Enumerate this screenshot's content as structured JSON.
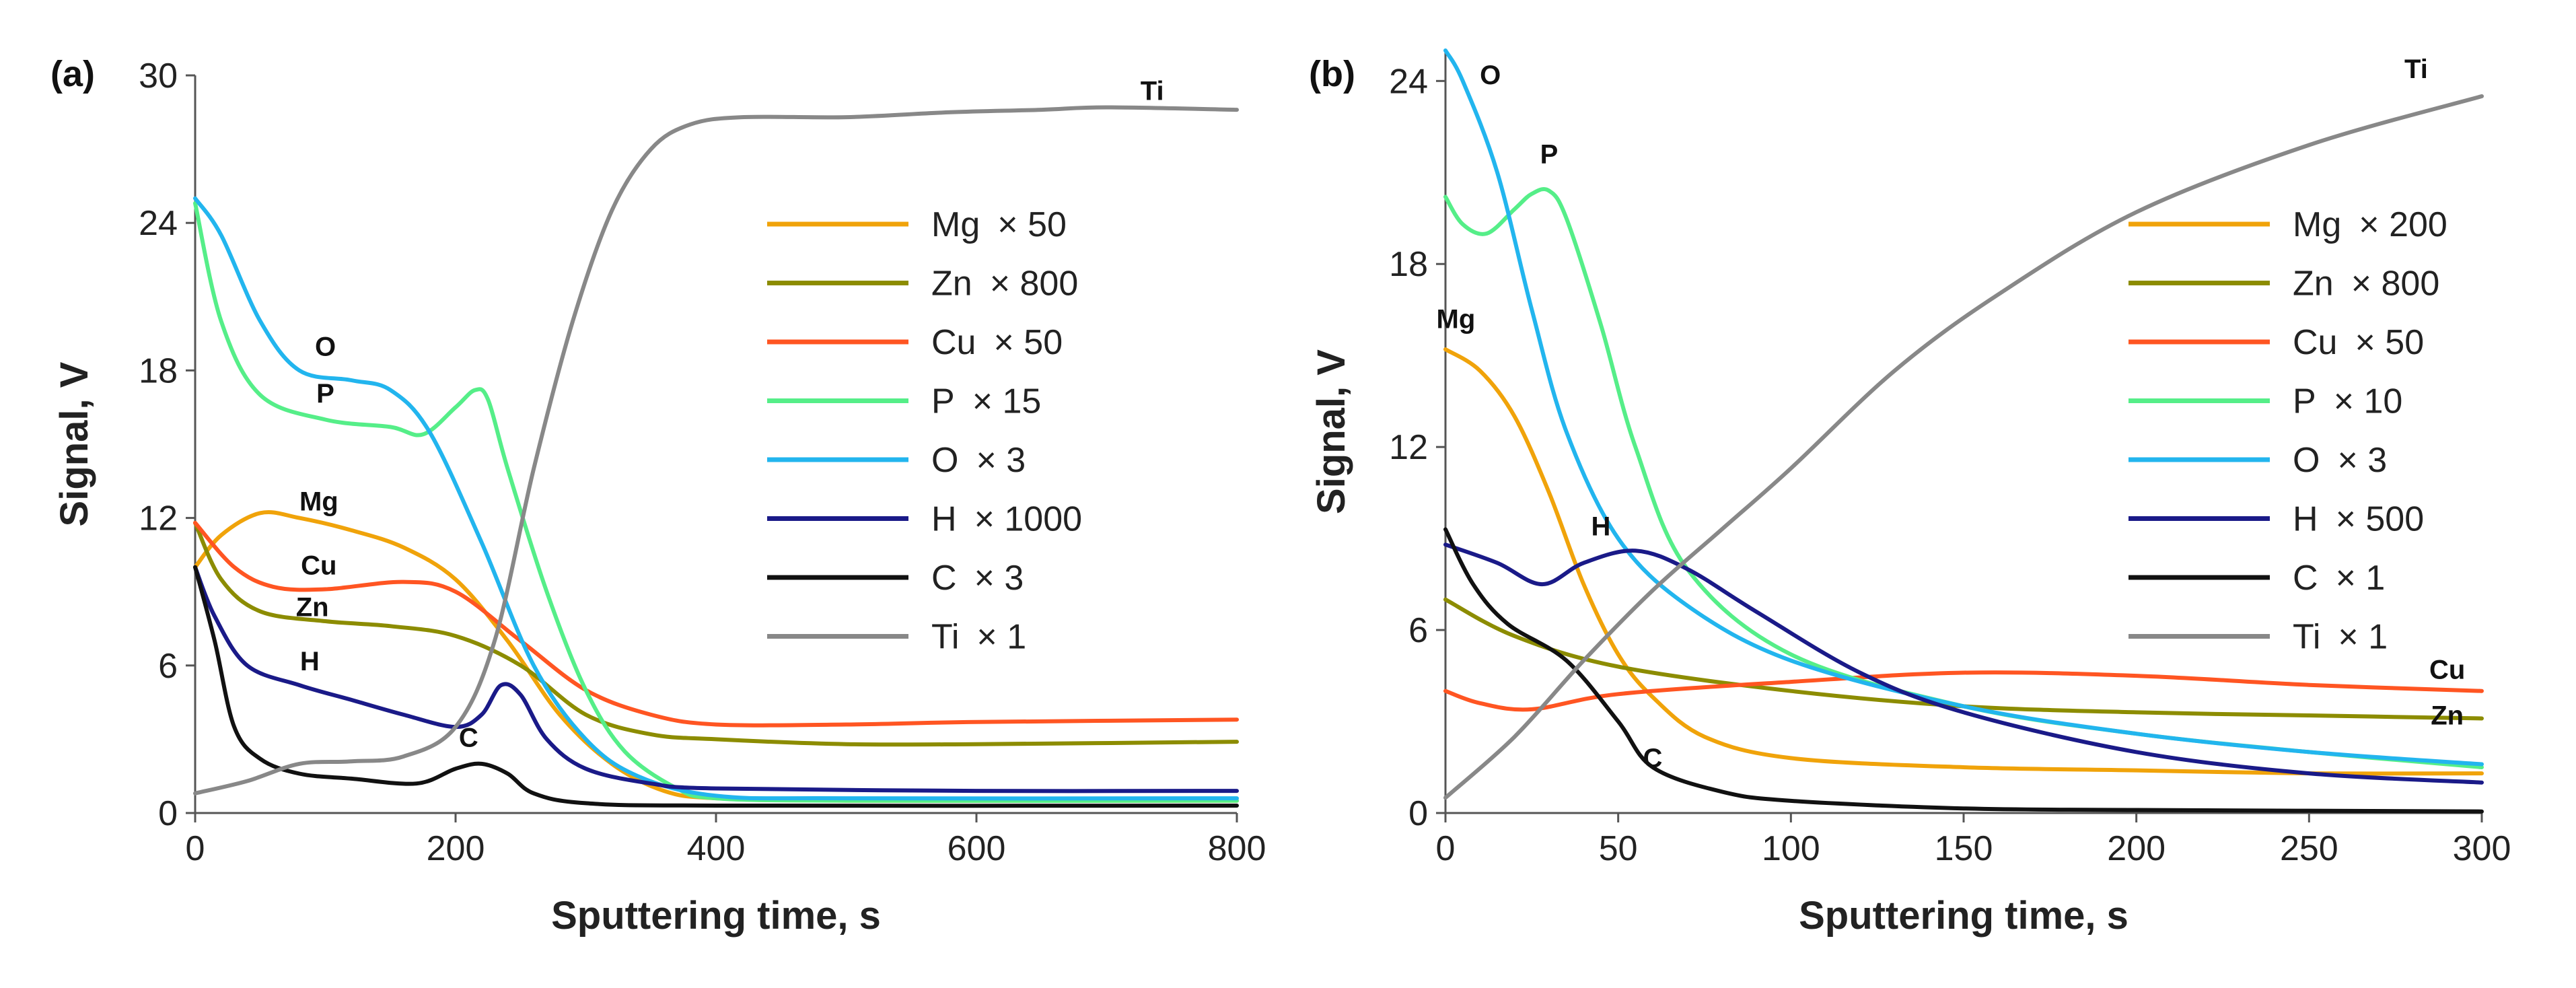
{
  "chart_data": [
    {
      "type": "line",
      "panel_label": "(a)",
      "xlabel": "Sputtering time, s",
      "ylabel": "Signal, V",
      "xlim": [
        0,
        800
      ],
      "ylim": [
        0,
        30
      ],
      "xticks": [
        0,
        200,
        400,
        600,
        800
      ],
      "yticks": [
        0,
        6,
        12,
        18,
        24,
        30
      ],
      "legend_position": "right",
      "series": [
        {
          "name": "Mg",
          "multiplier": "× 50",
          "color": "#f0a30a",
          "label": "Mg",
          "label_at": [
            95,
            12.3
          ],
          "points": [
            [
              0,
              10
            ],
            [
              20,
              11.3
            ],
            [
              50,
              12.2
            ],
            [
              80,
              12
            ],
            [
              120,
              11.5
            ],
            [
              160,
              10.8
            ],
            [
              200,
              9.5
            ],
            [
              240,
              7
            ],
            [
              280,
              4
            ],
            [
              320,
              2
            ],
            [
              360,
              0.9
            ],
            [
              400,
              0.6
            ],
            [
              500,
              0.5
            ],
            [
              800,
              0.5
            ]
          ]
        },
        {
          "name": "Zn",
          "multiplier": "× 800",
          "color": "#8c8c00",
          "label": "Zn",
          "label_at": [
            90,
            8.0
          ],
          "points": [
            [
              0,
              11.8
            ],
            [
              20,
              9.5
            ],
            [
              50,
              8.2
            ],
            [
              100,
              7.8
            ],
            [
              150,
              7.6
            ],
            [
              200,
              7.2
            ],
            [
              250,
              6
            ],
            [
              300,
              4
            ],
            [
              350,
              3.2
            ],
            [
              400,
              3
            ],
            [
              500,
              2.8
            ],
            [
              600,
              2.8
            ],
            [
              800,
              2.9
            ]
          ]
        },
        {
          "name": "Cu",
          "multiplier": "× 50",
          "color": "#ff5522",
          "label": "Cu",
          "label_at": [
            95,
            9.7
          ],
          "points": [
            [
              0,
              11.8
            ],
            [
              30,
              10
            ],
            [
              60,
              9.2
            ],
            [
              100,
              9.1
            ],
            [
              160,
              9.4
            ],
            [
              200,
              9
            ],
            [
              250,
              7
            ],
            [
              300,
              5
            ],
            [
              350,
              4
            ],
            [
              400,
              3.6
            ],
            [
              500,
              3.6
            ],
            [
              600,
              3.7
            ],
            [
              800,
              3.8
            ]
          ]
        },
        {
          "name": "P",
          "multiplier": "× 15",
          "color": "#55ee88",
          "label": "P",
          "label_at": [
            100,
            16.7
          ],
          "points": [
            [
              0,
              24.8
            ],
            [
              20,
              20
            ],
            [
              50,
              17
            ],
            [
              100,
              16
            ],
            [
              150,
              15.7
            ],
            [
              175,
              15.4
            ],
            [
              200,
              16.5
            ],
            [
              215,
              17.2
            ],
            [
              225,
              16.8
            ],
            [
              240,
              14
            ],
            [
              270,
              9
            ],
            [
              300,
              5
            ],
            [
              330,
              2.5
            ],
            [
              370,
              1
            ],
            [
              400,
              0.6
            ],
            [
              500,
              0.5
            ],
            [
              800,
              0.5
            ]
          ]
        },
        {
          "name": "O",
          "multiplier": "× 3",
          "color": "#22b5ee",
          "label": "O",
          "label_at": [
            100,
            18.6
          ],
          "points": [
            [
              0,
              25
            ],
            [
              20,
              23.5
            ],
            [
              50,
              20
            ],
            [
              80,
              18
            ],
            [
              120,
              17.6
            ],
            [
              150,
              17.2
            ],
            [
              180,
              15.5
            ],
            [
              220,
              11
            ],
            [
              260,
              6
            ],
            [
              300,
              3
            ],
            [
              340,
              1.5
            ],
            [
              400,
              0.7
            ],
            [
              500,
              0.6
            ],
            [
              800,
              0.6
            ]
          ]
        },
        {
          "name": "H",
          "multiplier": "× 1000",
          "color": "#1a1a88",
          "label": "H",
          "label_at": [
            88,
            5.8
          ],
          "points": [
            [
              0,
              10
            ],
            [
              15,
              8
            ],
            [
              40,
              6
            ],
            [
              80,
              5.2
            ],
            [
              120,
              4.6
            ],
            [
              160,
              4
            ],
            [
              200,
              3.5
            ],
            [
              220,
              4
            ],
            [
              235,
              5.2
            ],
            [
              250,
              4.8
            ],
            [
              270,
              3
            ],
            [
              300,
              1.8
            ],
            [
              350,
              1.2
            ],
            [
              400,
              1
            ],
            [
              600,
              0.9
            ],
            [
              800,
              0.9
            ]
          ]
        },
        {
          "name": "C",
          "multiplier": "× 3",
          "color": "#111111",
          "label": "C",
          "label_at": [
            210,
            2.7
          ],
          "points": [
            [
              0,
              10
            ],
            [
              15,
              7
            ],
            [
              30,
              3.5
            ],
            [
              50,
              2.2
            ],
            [
              80,
              1.6
            ],
            [
              120,
              1.4
            ],
            [
              170,
              1.2
            ],
            [
              200,
              1.8
            ],
            [
              220,
              2
            ],
            [
              240,
              1.6
            ],
            [
              260,
              0.8
            ],
            [
              300,
              0.4
            ],
            [
              400,
              0.3
            ],
            [
              800,
              0.3
            ]
          ]
        },
        {
          "name": "Ti",
          "multiplier": "× 1",
          "color": "#888888",
          "label": "Ti",
          "label_at": [
            735,
            29.0
          ],
          "points": [
            [
              0,
              0.8
            ],
            [
              40,
              1.3
            ],
            [
              80,
              2
            ],
            [
              120,
              2.1
            ],
            [
              160,
              2.3
            ],
            [
              200,
              3.5
            ],
            [
              230,
              7
            ],
            [
              260,
              14
            ],
            [
              290,
              20
            ],
            [
              320,
              24.5
            ],
            [
              350,
              27
            ],
            [
              380,
              28
            ],
            [
              420,
              28.3
            ],
            [
              500,
              28.3
            ],
            [
              580,
              28.5
            ],
            [
              650,
              28.6
            ],
            [
              700,
              28.7
            ],
            [
              800,
              28.6
            ]
          ]
        }
      ]
    },
    {
      "type": "line",
      "panel_label": "(b)",
      "xlabel": "Sputtering time, s",
      "ylabel": "Signal, V",
      "xlim": [
        0,
        300
      ],
      "ylim": [
        0,
        25
      ],
      "xticks": [
        0,
        50,
        100,
        150,
        200,
        250,
        300
      ],
      "yticks": [
        0,
        6,
        12,
        18,
        24
      ],
      "legend_position": "right",
      "series": [
        {
          "name": "Mg",
          "multiplier": "× 200",
          "color": "#f0a30a",
          "label": "Mg",
          "label_at": [
            3,
            15.9
          ],
          "points": [
            [
              0,
              15.2
            ],
            [
              10,
              14.5
            ],
            [
              20,
              13
            ],
            [
              30,
              10.5
            ],
            [
              40,
              7.5
            ],
            [
              50,
              5.2
            ],
            [
              60,
              3.8
            ],
            [
              75,
              2.5
            ],
            [
              100,
              1.8
            ],
            [
              150,
              1.5
            ],
            [
              200,
              1.4
            ],
            [
              250,
              1.3
            ],
            [
              300,
              1.3
            ]
          ]
        },
        {
          "name": "Zn",
          "multiplier": "× 800",
          "color": "#8c8c00",
          "label": "Zn",
          "label_at": [
            290,
            2.9
          ],
          "points": [
            [
              0,
              7
            ],
            [
              20,
              5.8
            ],
            [
              50,
              4.8
            ],
            [
              100,
              4
            ],
            [
              150,
              3.5
            ],
            [
              200,
              3.3
            ],
            [
              250,
              3.2
            ],
            [
              300,
              3.1
            ]
          ]
        },
        {
          "name": "Cu",
          "multiplier": "× 50",
          "color": "#ff5522",
          "label": "Cu",
          "label_at": [
            290,
            4.4
          ],
          "points": [
            [
              0,
              4
            ],
            [
              10,
              3.6
            ],
            [
              25,
              3.4
            ],
            [
              50,
              3.9
            ],
            [
              100,
              4.3
            ],
            [
              150,
              4.6
            ],
            [
              200,
              4.5
            ],
            [
              250,
              4.2
            ],
            [
              300,
              4
            ]
          ]
        },
        {
          "name": "P",
          "multiplier": "× 10",
          "color": "#55ee88",
          "label": "P",
          "label_at": [
            30,
            21.3
          ],
          "points": [
            [
              0,
              20.2
            ],
            [
              5,
              19.3
            ],
            [
              12,
              19
            ],
            [
              20,
              19.8
            ],
            [
              25,
              20.3
            ],
            [
              30,
              20.4
            ],
            [
              35,
              19.5
            ],
            [
              45,
              16
            ],
            [
              55,
              12
            ],
            [
              70,
              8
            ],
            [
              100,
              5.2
            ],
            [
              150,
              3.5
            ],
            [
              200,
              2.6
            ],
            [
              250,
              2
            ],
            [
              300,
              1.5
            ]
          ]
        },
        {
          "name": "O",
          "multiplier": "× 3",
          "color": "#22b5ee",
          "label": "O",
          "label_at": [
            13,
            23.9
          ],
          "points": [
            [
              0,
              25
            ],
            [
              5,
              24
            ],
            [
              15,
              21
            ],
            [
              25,
              16.5
            ],
            [
              35,
              12.5
            ],
            [
              50,
              9
            ],
            [
              70,
              6.8
            ],
            [
              100,
              5
            ],
            [
              150,
              3.5
            ],
            [
              200,
              2.6
            ],
            [
              250,
              2
            ],
            [
              300,
              1.6
            ]
          ]
        },
        {
          "name": "H",
          "multiplier": "× 500",
          "color": "#1a1a88",
          "label": "H",
          "label_at": [
            45,
            9.1
          ],
          "points": [
            [
              0,
              8.8
            ],
            [
              15,
              8.2
            ],
            [
              28,
              7.5
            ],
            [
              40,
              8.2
            ],
            [
              55,
              8.6
            ],
            [
              70,
              8
            ],
            [
              90,
              6.6
            ],
            [
              120,
              4.6
            ],
            [
              150,
              3.3
            ],
            [
              200,
              2
            ],
            [
              250,
              1.3
            ],
            [
              300,
              1
            ]
          ]
        },
        {
          "name": "C",
          "multiplier": "× 1",
          "color": "#111111",
          "label": "C",
          "label_at": [
            60,
            1.5
          ],
          "points": [
            [
              0,
              9.3
            ],
            [
              8,
              7.5
            ],
            [
              18,
              6.2
            ],
            [
              35,
              5
            ],
            [
              50,
              3
            ],
            [
              60,
              1.5
            ],
            [
              80,
              0.7
            ],
            [
              100,
              0.4
            ],
            [
              150,
              0.15
            ],
            [
              200,
              0.1
            ],
            [
              300,
              0.05
            ]
          ]
        },
        {
          "name": "Ti",
          "multiplier": "× 1",
          "color": "#888888",
          "label": "Ti",
          "label_at": [
            281,
            24.1
          ],
          "points": [
            [
              0,
              0.5
            ],
            [
              20,
              2.5
            ],
            [
              40,
              5
            ],
            [
              60,
              7.3
            ],
            [
              80,
              9.3
            ],
            [
              100,
              11.3
            ],
            [
              130,
              14.5
            ],
            [
              160,
              17
            ],
            [
              200,
              19.7
            ],
            [
              250,
              21.9
            ],
            [
              300,
              23.5
            ]
          ]
        }
      ]
    }
  ]
}
